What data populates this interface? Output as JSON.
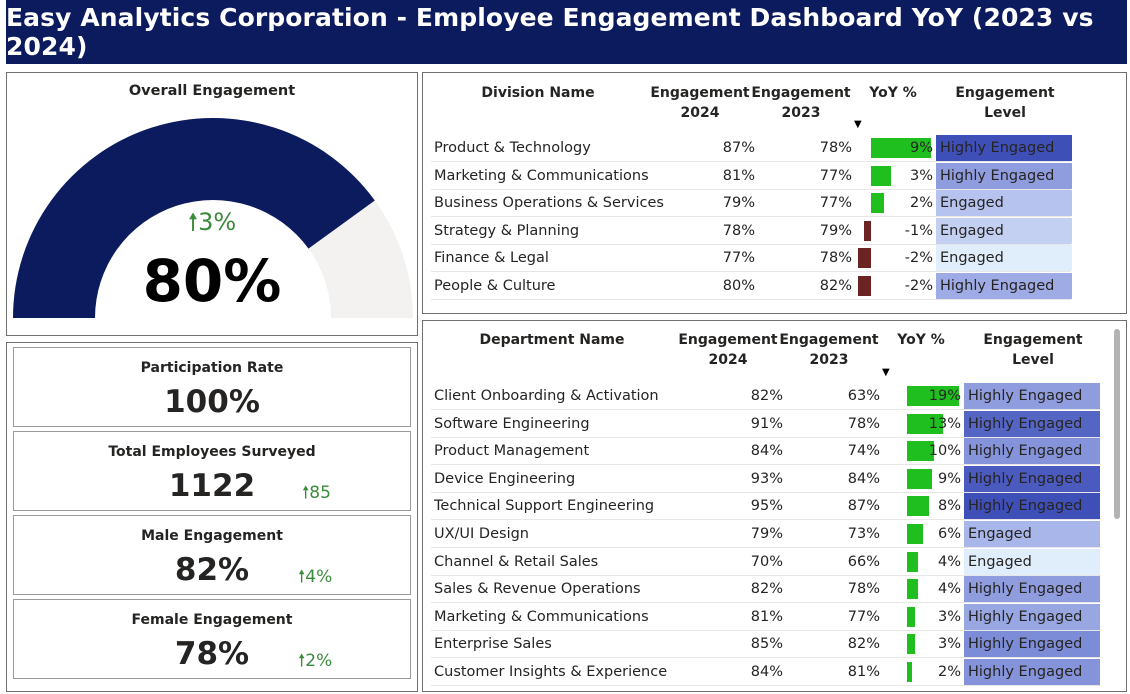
{
  "header": {
    "title": "Easy Analytics Corporation - Employee Engagement Dashboard YoY (2023 vs 2024)"
  },
  "gauge": {
    "title": "Overall Engagement",
    "value": "80%",
    "value_fraction": 0.8,
    "delta": "3%",
    "delta_icon": "up-arrow-icon"
  },
  "kpis": [
    {
      "label": "Participation Rate",
      "value": "100%",
      "delta": ""
    },
    {
      "label": "Total Employees Surveyed",
      "value": "1122",
      "delta": "85"
    },
    {
      "label": "Male Engagement",
      "value": "82%",
      "delta": "4%"
    },
    {
      "label": "Female Engagement",
      "value": "78%",
      "delta": "2%"
    }
  ],
  "divisions": {
    "headers": {
      "name": "Division Name",
      "eng2024": "Engagement 2024",
      "eng2023": "Engagement 2023",
      "yoy": "YoY %",
      "level": "Engagement Level"
    },
    "rows": [
      {
        "name": "Product & Technology",
        "eng2024": "87%",
        "eng2023": "78%",
        "yoy": "9%",
        "yoy_value": 9,
        "level": "Highly Engaged",
        "level_color": "#3f4fb8"
      },
      {
        "name": "Marketing & Communications",
        "eng2024": "81%",
        "eng2023": "77%",
        "yoy": "3%",
        "yoy_value": 3,
        "level": "Highly Engaged",
        "level_color": "#8f9ddf"
      },
      {
        "name": "Business Operations & Services",
        "eng2024": "79%",
        "eng2023": "77%",
        "yoy": "2%",
        "yoy_value": 2,
        "level": "Engaged",
        "level_color": "#b6c3ee"
      },
      {
        "name": "Strategy & Planning",
        "eng2024": "78%",
        "eng2023": "79%",
        "yoy": "-1%",
        "yoy_value": -1,
        "level": "Engaged",
        "level_color": "#c4d0f2"
      },
      {
        "name": "Finance & Legal",
        "eng2024": "77%",
        "eng2023": "78%",
        "yoy": "-2%",
        "yoy_value": -2,
        "level": "Engaged",
        "level_color": "#e0eefc"
      },
      {
        "name": "People & Culture",
        "eng2024": "80%",
        "eng2023": "82%",
        "yoy": "-2%",
        "yoy_value": -2,
        "level": "Highly Engaged",
        "level_color": "#9eabe4"
      }
    ]
  },
  "departments": {
    "headers": {
      "name": "Department Name",
      "eng2024": "Engagement 2024",
      "eng2023": "Engagement 2023",
      "yoy": "YoY %",
      "level": "Engagement Level"
    },
    "rows": [
      {
        "name": "Client Onboarding & Activation",
        "eng2024": "82%",
        "eng2023": "63%",
        "yoy": "19%",
        "yoy_value": 19,
        "level": "Highly Engaged",
        "level_color": "#8f9ddf"
      },
      {
        "name": "Software Engineering",
        "eng2024": "91%",
        "eng2023": "78%",
        "yoy": "13%",
        "yoy_value": 13,
        "level": "Highly Engaged",
        "level_color": "#5565c4"
      },
      {
        "name": "Product Management",
        "eng2024": "84%",
        "eng2023": "74%",
        "yoy": "10%",
        "yoy_value": 10,
        "level": "Highly Engaged",
        "level_color": "#8594da"
      },
      {
        "name": "Device Engineering",
        "eng2024": "93%",
        "eng2023": "84%",
        "yoy": "9%",
        "yoy_value": 9,
        "level": "Highly Engaged",
        "level_color": "#4a5abf"
      },
      {
        "name": "Technical Support Engineering",
        "eng2024": "95%",
        "eng2023": "87%",
        "yoy": "8%",
        "yoy_value": 8,
        "level": "Highly Engaged",
        "level_color": "#3f4fb8"
      },
      {
        "name": "UX/UI Design",
        "eng2024": "79%",
        "eng2023": "73%",
        "yoy": "6%",
        "yoy_value": 6,
        "level": "Engaged",
        "level_color": "#a9b6ea"
      },
      {
        "name": "Channel & Retail Sales",
        "eng2024": "70%",
        "eng2023": "66%",
        "yoy": "4%",
        "yoy_value": 4,
        "level": "Engaged",
        "level_color": "#e0eefc"
      },
      {
        "name": "Sales & Revenue Operations",
        "eng2024": "82%",
        "eng2023": "78%",
        "yoy": "4%",
        "yoy_value": 4,
        "level": "Highly Engaged",
        "level_color": "#8f9ddf"
      },
      {
        "name": "Marketing & Communications",
        "eng2024": "81%",
        "eng2023": "77%",
        "yoy": "3%",
        "yoy_value": 3,
        "level": "Highly Engaged",
        "level_color": "#98a6e2"
      },
      {
        "name": "Enterprise Sales",
        "eng2024": "85%",
        "eng2023": "82%",
        "yoy": "3%",
        "yoy_value": 3,
        "level": "Highly Engaged",
        "level_color": "#7c8cd6"
      },
      {
        "name": "Customer Insights & Experience",
        "eng2024": "84%",
        "eng2023": "81%",
        "yoy": "2%",
        "yoy_value": 2,
        "level": "Highly Engaged",
        "level_color": "#8594da"
      }
    ]
  },
  "colors": {
    "navy": "#0c1a5e",
    "positive": "#1fbf1f",
    "negative": "#6b2424",
    "delta_green": "#3b8a3b"
  }
}
